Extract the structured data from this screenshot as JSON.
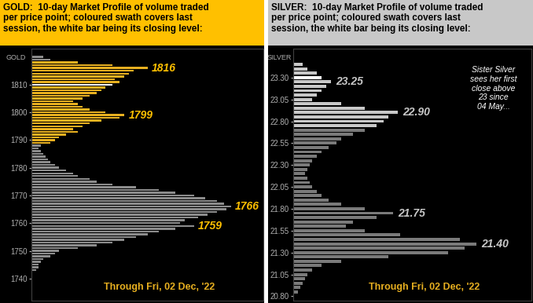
{
  "chart_data": [
    {
      "type": "bar",
      "orientation": "horizontal",
      "color": "#ffc000",
      "title": "GOLD:  10-day Market Profile of volume traded\nper price point; coloured swath covers last\nsession, the white bar being its closing level:",
      "ylabel": "GOLD",
      "footnote": "Through Fri, 02 Dec, '22",
      "tick_labels": "y",
      "xlim": [
        0,
        100
      ],
      "ylim": [
        1732,
        1823
      ],
      "yticks": [
        1740,
        1750,
        1760,
        1770,
        1780,
        1790,
        1800,
        1810
      ],
      "y": [
        1743,
        1744,
        1745,
        1746,
        1747,
        1748,
        1749,
        1750,
        1751,
        1752,
        1753,
        1754,
        1755,
        1756,
        1757,
        1758,
        1759,
        1760,
        1761,
        1762,
        1763,
        1764,
        1765,
        1766,
        1767,
        1768,
        1769,
        1770,
        1771,
        1772,
        1773,
        1774,
        1775,
        1776,
        1777,
        1778,
        1779,
        1780,
        1781,
        1782,
        1783,
        1784,
        1785,
        1786,
        1787,
        1788,
        1789,
        1790,
        1791,
        1792,
        1793,
        1794,
        1795,
        1796,
        1797,
        1798,
        1799,
        1800,
        1801,
        1802,
        1803,
        1804,
        1805,
        1806,
        1807,
        1808,
        1809,
        1810,
        1811,
        1812,
        1813,
        1814,
        1815,
        1816,
        1817,
        1818,
        1819,
        1820
      ],
      "values": [
        2,
        3,
        3,
        4,
        5,
        8,
        10,
        12,
        20,
        28,
        35,
        40,
        45,
        50,
        55,
        62,
        70,
        64,
        66,
        72,
        76,
        80,
        84,
        86,
        83,
        80,
        75,
        70,
        62,
        55,
        45,
        35,
        28,
        25,
        20,
        18,
        15,
        12,
        10,
        8,
        7,
        6,
        5,
        4,
        3,
        4,
        8,
        10,
        12,
        15,
        20,
        18,
        22,
        25,
        30,
        38,
        40,
        32,
        25,
        22,
        20,
        18,
        22,
        25,
        28,
        30,
        32,
        35,
        38,
        36,
        40,
        42,
        44,
        50,
        35,
        20,
        8,
        5
      ],
      "colors": [
        "#8c8c8c",
        "#8c8c8c",
        "#8c8c8c",
        "#8c8c8c",
        "#8c8c8c",
        "#8c8c8c",
        "#8c8c8c",
        "#8c8c8c",
        "#8c8c8c",
        "#8c8c8c",
        "#8c8c8c",
        "#8c8c8c",
        "#8c8c8c",
        "#8c8c8c",
        "#8c8c8c",
        "#8c8c8c",
        "#8c8c8c",
        "#8c8c8c",
        "#8c8c8c",
        "#8c8c8c",
        "#8c8c8c",
        "#8c8c8c",
        "#8c8c8c",
        "#8c8c8c",
        "#8c8c8c",
        "#8c8c8c",
        "#8c8c8c",
        "#8c8c8c",
        "#8c8c8c",
        "#8c8c8c",
        "#8c8c8c",
        "#8c8c8c",
        "#8c8c8c",
        "#8c8c8c",
        "#8c8c8c",
        "#8c8c8c",
        "#8c8c8c",
        "#8c8c8c",
        "#8c8c8c",
        "#8c8c8c",
        "#8c8c8c",
        "#8c8c8c",
        "#8c8c8c",
        "#8c8c8c",
        "#8c8c8c",
        "#8c8c8c",
        "#e8b020",
        "#e8b020",
        "#e8b020",
        "#e8b020",
        "#e8b020",
        "#e8b020",
        "#e8b020",
        "#e8b020",
        "#e8b020",
        "#e8b020",
        "#e8b020",
        "#e8b020",
        "#e8b020",
        "#e8b020",
        "#e8b020",
        "#e8b020",
        "#e8b020",
        "#e8b020",
        "#e8b020",
        "#e8b020",
        "#e8b020",
        "#ffffff",
        "#e8b020",
        "#e8b020",
        "#e8b020",
        "#e8b020",
        "#e8b020",
        "#e8b020",
        "#e8b020",
        "#e8b020",
        "#8c8c8c",
        "#8c8c8c"
      ],
      "annotations": [
        {
          "text": "1816",
          "y": 1816
        },
        {
          "text": "1799",
          "y": 1799
        },
        {
          "text": "1766",
          "y": 1766
        },
        {
          "text": "1759",
          "y": 1759
        }
      ]
    },
    {
      "type": "bar",
      "orientation": "horizontal",
      "color": "#c8c8c8",
      "title": "SILVER:  10-day Market Profile of volume traded\nper price point; coloured swath covers last\nsession, the white bar being its closing level:",
      "ylabel": "SILVER",
      "footnote": "Through Fri, 02 Dec, '22",
      "note": "Sister Silver\nsees her first\nclose above\n23 since\n04 May...",
      "tick_labels": "y",
      "xlim": [
        0,
        100
      ],
      "ylim": [
        20.75,
        23.63
      ],
      "yticks": [
        {
          "value": 20.8,
          "label": "20.80"
        },
        {
          "value": 21.05,
          "label": "21.05"
        },
        {
          "value": 21.3,
          "label": "21.30"
        },
        {
          "value": 21.55,
          "label": "21.55"
        },
        {
          "value": 21.8,
          "label": "21.80"
        },
        {
          "value": 22.05,
          "label": "22.05"
        },
        {
          "value": 22.3,
          "label": "22.30"
        },
        {
          "value": 22.55,
          "label": "22.55"
        },
        {
          "value": 22.8,
          "label": "22.80"
        },
        {
          "value": 23.05,
          "label": "23.05"
        },
        {
          "value": 23.3,
          "label": "23.30"
        }
      ],
      "y": [
        20.85,
        20.9,
        20.95,
        21.0,
        21.05,
        21.1,
        21.15,
        21.2,
        21.25,
        21.3,
        21.35,
        21.4,
        21.45,
        21.5,
        21.55,
        21.6,
        21.65,
        21.7,
        21.75,
        21.8,
        21.85,
        21.9,
        21.95,
        22.0,
        22.05,
        22.1,
        22.15,
        22.2,
        22.25,
        22.3,
        22.35,
        22.4,
        22.45,
        22.5,
        22.55,
        22.6,
        22.65,
        22.7,
        22.75,
        22.8,
        22.85,
        22.9,
        22.95,
        23.0,
        23.05,
        23.1,
        23.15,
        23.2,
        23.25,
        23.3,
        23.35,
        23.4,
        23.45
      ],
      "values": [
        2,
        3,
        4,
        5,
        6,
        8,
        12,
        20,
        40,
        65,
        72,
        77,
        70,
        45,
        30,
        22,
        25,
        35,
        42,
        30,
        20,
        15,
        12,
        10,
        8,
        7,
        6,
        5,
        6,
        7,
        8,
        10,
        12,
        15,
        18,
        20,
        25,
        30,
        35,
        38,
        40,
        44,
        30,
        20,
        8,
        10,
        12,
        14,
        16,
        12,
        10,
        6,
        4
      ],
      "colors": [
        "#7a7a7a",
        "#7a7a7a",
        "#7a7a7a",
        "#7a7a7a",
        "#7a7a7a",
        "#7a7a7a",
        "#7a7a7a",
        "#7a7a7a",
        "#7a7a7a",
        "#7a7a7a",
        "#7a7a7a",
        "#7a7a7a",
        "#7a7a7a",
        "#7a7a7a",
        "#7a7a7a",
        "#7a7a7a",
        "#7a7a7a",
        "#7a7a7a",
        "#7a7a7a",
        "#7a7a7a",
        "#7a7a7a",
        "#7a7a7a",
        "#7a7a7a",
        "#7a7a7a",
        "#7a7a7a",
        "#7a7a7a",
        "#7a7a7a",
        "#7a7a7a",
        "#7a7a7a",
        "#7a7a7a",
        "#7a7a7a",
        "#7a7a7a",
        "#7a7a7a",
        "#7a7a7a",
        "#7a7a7a",
        "#7a7a7a",
        "#7a7a7a",
        "#7a7a7a",
        "#c8c8c8",
        "#c8c8c8",
        "#c8c8c8",
        "#c8c8c8",
        "#c8c8c8",
        "#c8c8c8",
        "#c8c8c8",
        "#c8c8c8",
        "#c8c8c8",
        "#c8c8c8",
        "#c8c8c8",
        "#ffffff",
        "#c8c8c8",
        "#c8c8c8",
        "#c8c8c8"
      ],
      "annotations": [
        {
          "text": "23.25",
          "y": 23.25
        },
        {
          "text": "22.90",
          "y": 22.9
        },
        {
          "text": "21.75",
          "y": 21.75
        },
        {
          "text": "21.40",
          "y": 21.4
        }
      ]
    }
  ]
}
